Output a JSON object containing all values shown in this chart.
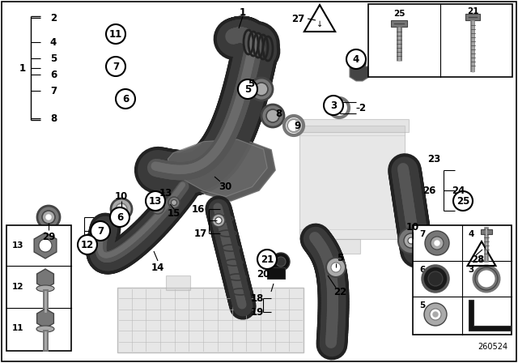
{
  "bg_color": "#ffffff",
  "part_number": "260524",
  "duct_dark": "#222222",
  "duct_mid": "#3a3a3a",
  "duct_light": "#555555",
  "duct_highlight": "#6a6a6a",
  "metal_dark": "#444444",
  "metal_mid": "#777777",
  "metal_light": "#aaaaaa",
  "metal_bright": "#cccccc",
  "plastic_dark": "#555555",
  "plastic_mid": "#888888",
  "plastic_light": "#bbbbbb",
  "shield_dark": "#4a4a4a",
  "shield_mid": "#6a6a6a",
  "shield_light": "#888888",
  "airbox_color": "#c8c8c8",
  "rad_color": "#d0d0d0",
  "label_font": 8.5,
  "circle_font": 8.5,
  "small_font": 7.5
}
